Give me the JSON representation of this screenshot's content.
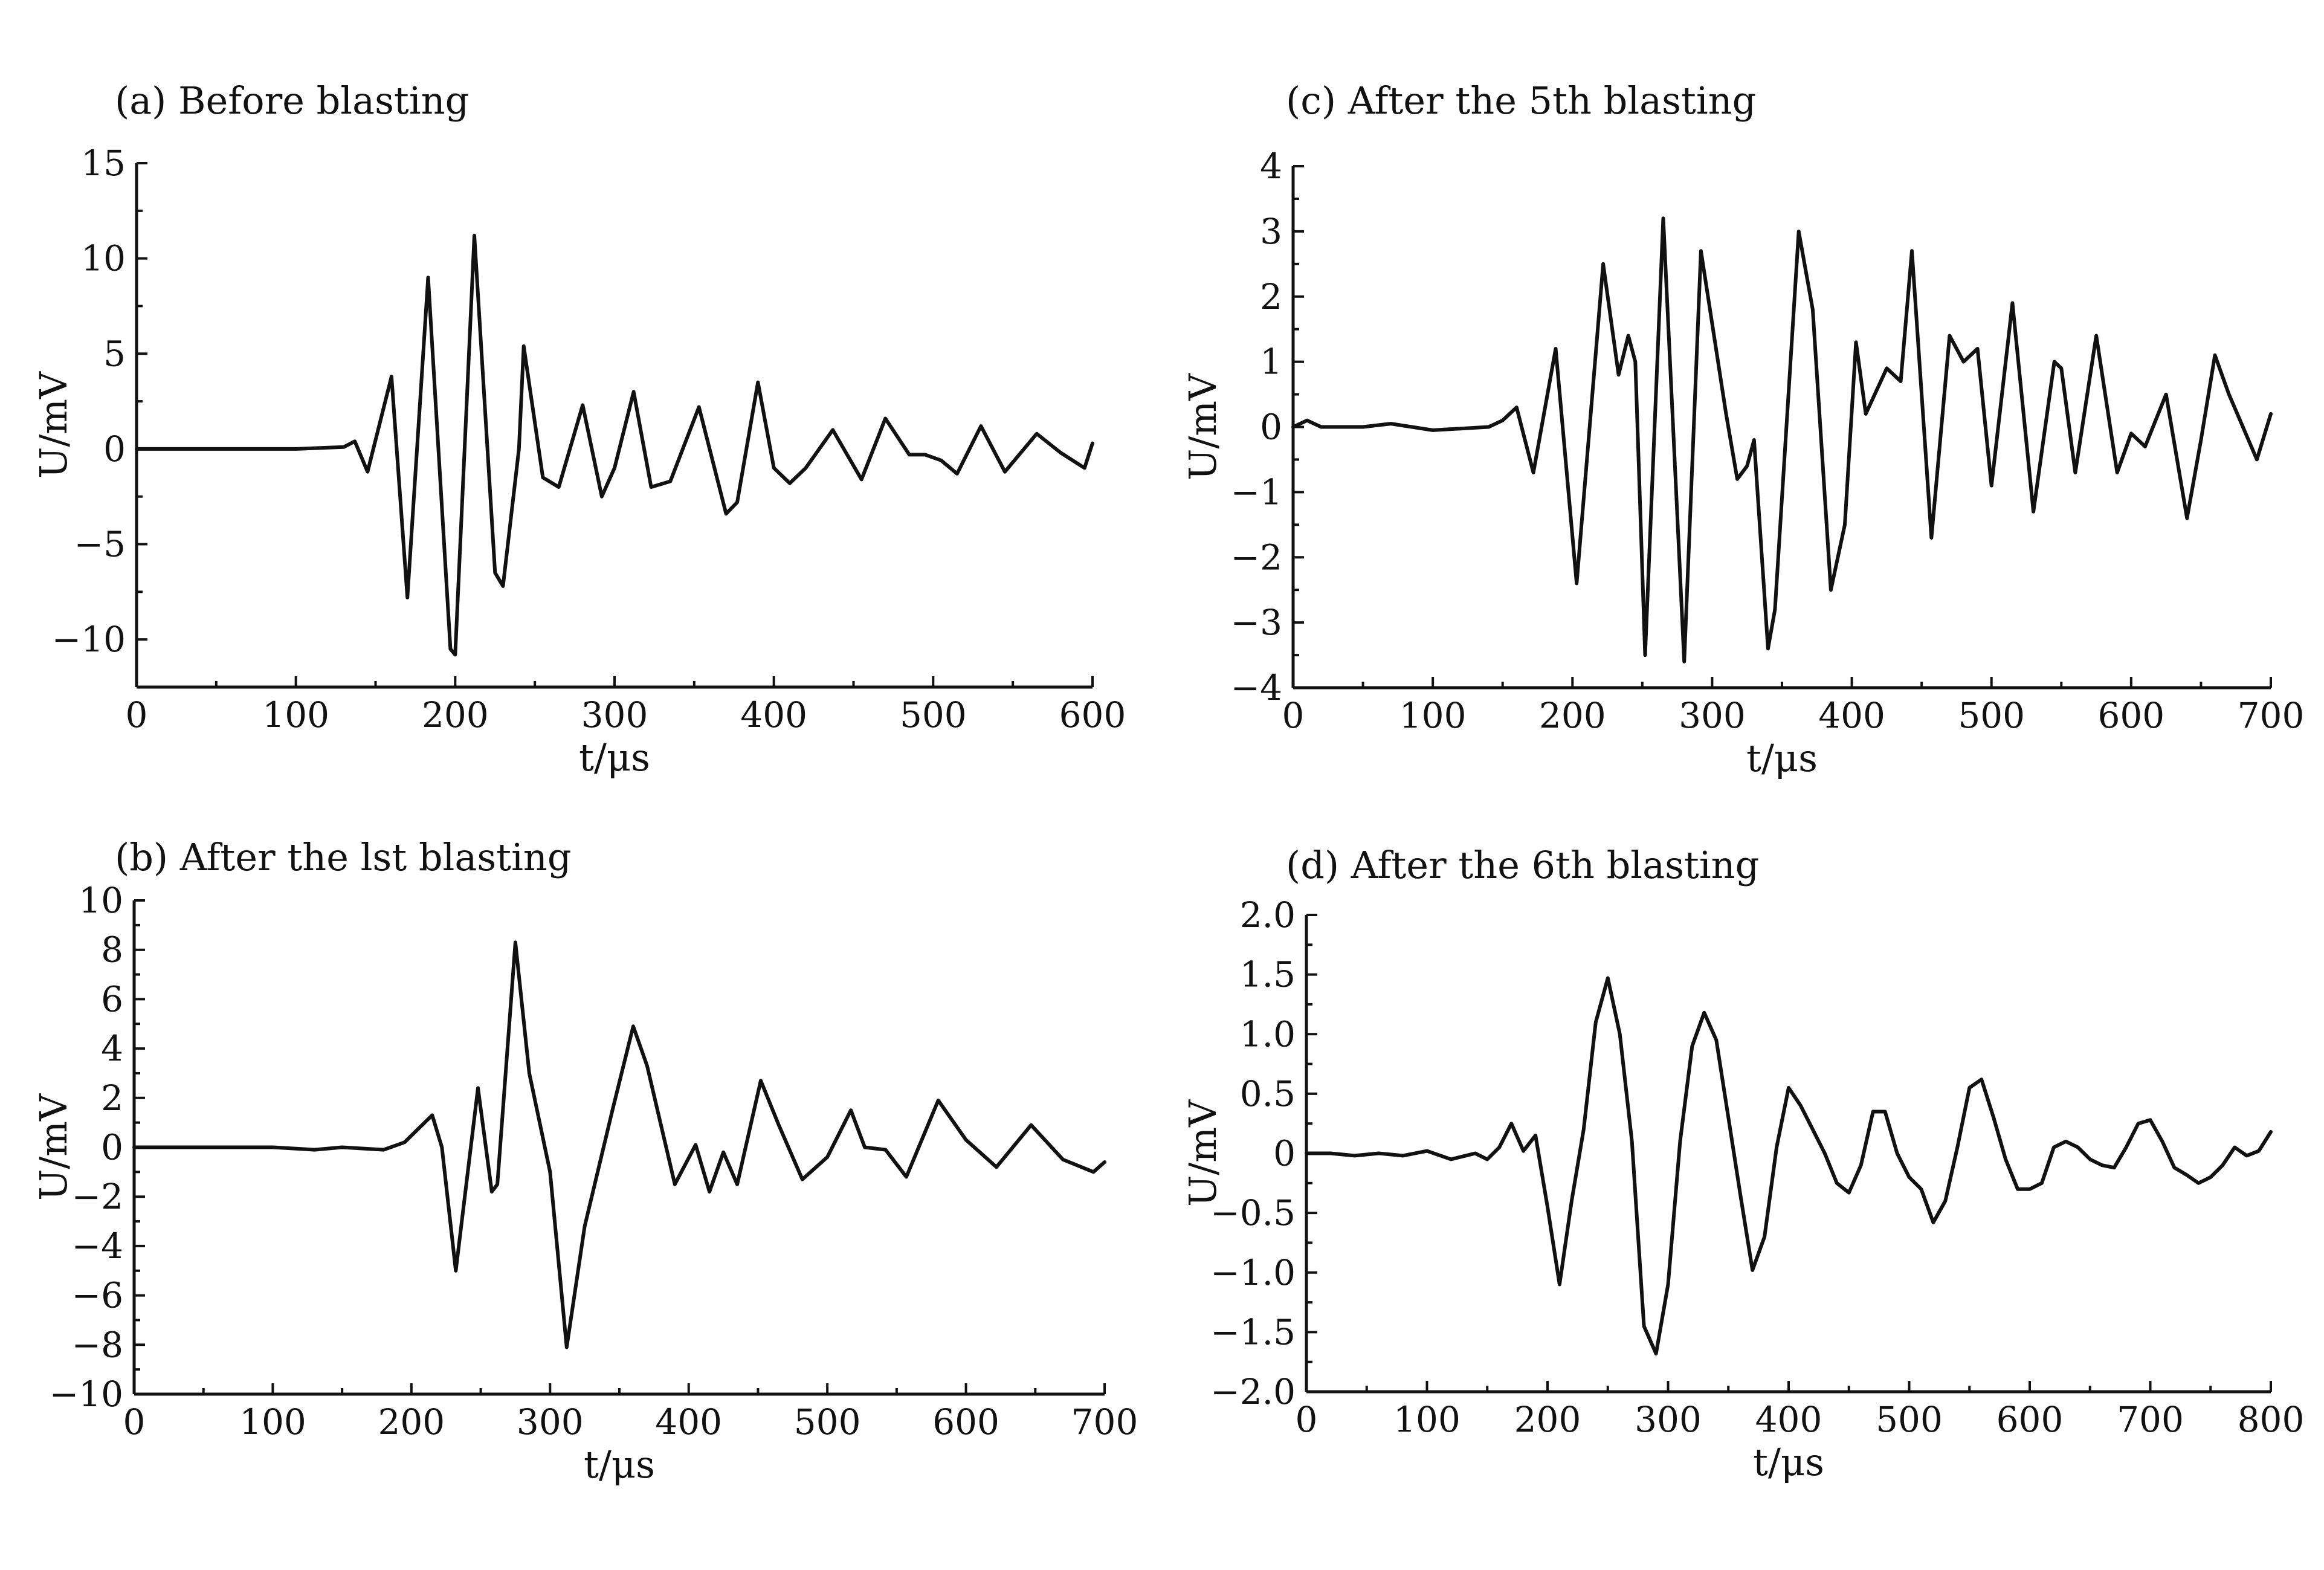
{
  "chart_data": [
    {
      "panel_id": "a",
      "type": "line",
      "title": "(a) Before blasting",
      "xlabel": "t/μs",
      "ylabel": "U/mV",
      "xlim": [
        0,
        600
      ],
      "ylim": [
        -12.5,
        15
      ],
      "xticks": [
        0,
        100,
        200,
        300,
        400,
        500,
        600
      ],
      "yticks": [
        -10,
        -5,
        0,
        5,
        10,
        15
      ],
      "ytick_labels": [
        "−10",
        "−5",
        "0",
        "5",
        "10",
        "15"
      ],
      "grid": false,
      "legend": "none",
      "series": [
        {
          "x": [
            0,
            50,
            100,
            130,
            137,
            145,
            160,
            170,
            183,
            197,
            200,
            212,
            225,
            230,
            240,
            243,
            255,
            265,
            280,
            292,
            300,
            312,
            323,
            335,
            353,
            370,
            377,
            390,
            400,
            410,
            420,
            437,
            455,
            470,
            485,
            495,
            505,
            515,
            530,
            545,
            565,
            580,
            595,
            600
          ],
          "y": [
            0,
            0,
            0,
            0.1,
            0.4,
            -1.2,
            3.8,
            -7.8,
            9,
            -10.5,
            -10.8,
            11.2,
            -6.5,
            -7.2,
            0,
            5.4,
            -1.5,
            -2,
            2.3,
            -2.5,
            -1,
            3,
            -2,
            -1.7,
            2.2,
            -3.4,
            -2.8,
            3.5,
            -1,
            -1.8,
            -1,
            1,
            -1.6,
            1.6,
            -0.3,
            -0.3,
            -0.6,
            -1.3,
            1.2,
            -1.2,
            0.8,
            -0.2,
            -1,
            0.3
          ]
        }
      ]
    },
    {
      "panel_id": "b",
      "type": "line",
      "title": "(b) After the lst blasting",
      "xlabel": "t/μs",
      "ylabel": "U/mV",
      "xlim": [
        0,
        700
      ],
      "ylim": [
        -10,
        10
      ],
      "xticks": [
        0,
        100,
        200,
        300,
        400,
        500,
        600,
        700
      ],
      "yticks": [
        -10,
        -8,
        -6,
        -4,
        -2,
        0,
        2,
        4,
        6,
        8,
        10
      ],
      "ytick_labels": [
        "−10",
        "−8",
        "−6",
        "−4",
        "−2",
        "0",
        "2",
        "4",
        "6",
        "8",
        "10"
      ],
      "grid": false,
      "legend": "none",
      "series": [
        {
          "x": [
            0,
            100,
            130,
            150,
            180,
            195,
            215,
            222,
            232,
            248,
            258,
            262,
            275,
            285,
            300,
            312,
            325,
            345,
            360,
            370,
            390,
            405,
            415,
            425,
            435,
            452,
            465,
            482,
            500,
            517,
            527,
            542,
            557,
            580,
            600,
            622,
            647,
            670,
            692,
            700
          ],
          "y": [
            0,
            0,
            -0.1,
            0,
            -0.1,
            0.2,
            1.3,
            0,
            -5,
            2.4,
            -1.8,
            -1.5,
            8.3,
            3,
            -1,
            -8.1,
            -3.2,
            1.5,
            4.9,
            3.3,
            -1.5,
            0.1,
            -1.8,
            -0.2,
            -1.5,
            2.7,
            0.9,
            -1.3,
            -0.4,
            1.5,
            0,
            -0.1,
            -1.2,
            1.9,
            0.3,
            -0.8,
            0.9,
            -0.5,
            -1,
            -0.6
          ]
        }
      ]
    },
    {
      "panel_id": "c",
      "type": "line",
      "title": "(c) After the 5th blasting",
      "xlabel": "t/μs",
      "ylabel": "U/mV",
      "xlim": [
        0,
        700
      ],
      "ylim": [
        -4,
        4
      ],
      "xticks": [
        0,
        100,
        200,
        300,
        400,
        500,
        600,
        700
      ],
      "yticks": [
        -4,
        -3,
        -2,
        -1,
        0,
        1,
        2,
        3,
        4
      ],
      "ytick_labels": [
        "−4",
        "−3",
        "−2",
        "−1",
        "0",
        "1",
        "2",
        "3",
        "4"
      ],
      "grid": false,
      "legend": "none",
      "series": [
        {
          "x": [
            0,
            10,
            20,
            50,
            70,
            100,
            140,
            150,
            160,
            172,
            188,
            203,
            222,
            233,
            240,
            245,
            252,
            265,
            280,
            292,
            310,
            318,
            325,
            330,
            340,
            345,
            362,
            372,
            385,
            395,
            403,
            410,
            425,
            435,
            443,
            457,
            470,
            480,
            490,
            500,
            515,
            530,
            545,
            550,
            560,
            575,
            590,
            600,
            610,
            625,
            640,
            650,
            660,
            670,
            690,
            700
          ],
          "y": [
            0,
            0.1,
            0,
            0,
            0.05,
            -0.05,
            0,
            0.1,
            0.3,
            -0.7,
            1.2,
            -2.4,
            2.5,
            0.8,
            1.4,
            1,
            -3.5,
            3.2,
            -3.6,
            2.7,
            0.2,
            -0.8,
            -0.6,
            -0.2,
            -3.4,
            -2.8,
            3,
            1.8,
            -2.5,
            -1.5,
            1.3,
            0.2,
            0.9,
            0.7,
            2.7,
            -1.7,
            1.4,
            1,
            1.2,
            -0.9,
            1.9,
            -1.3,
            1,
            0.9,
            -0.7,
            1.4,
            -0.7,
            -0.1,
            -0.3,
            0.5,
            -1.4,
            -0.2,
            1.1,
            0.5,
            -0.5,
            0.2
          ]
        }
      ]
    },
    {
      "panel_id": "d",
      "type": "line",
      "title": "(d) After the 6th blasting",
      "xlabel": "t/μs",
      "ylabel": "U/mV",
      "xlim": [
        0,
        800
      ],
      "ylim": [
        -2,
        2
      ],
      "xticks": [
        0,
        100,
        200,
        300,
        400,
        500,
        600,
        700,
        800
      ],
      "yticks": [
        -2,
        -1.5,
        -1,
        -0.5,
        0,
        0.5,
        1,
        1.5,
        2
      ],
      "ytick_labels": [
        "−2.0",
        "−1.5",
        "−1.0",
        "−0.5",
        "0",
        "0.5",
        "1.0",
        "1.5",
        "2.0"
      ],
      "grid": false,
      "legend": "none",
      "series": [
        {
          "x": [
            0,
            20,
            40,
            60,
            80,
            100,
            120,
            140,
            150,
            160,
            170,
            180,
            190,
            200,
            210,
            220,
            230,
            240,
            250,
            260,
            270,
            280,
            290,
            300,
            310,
            320,
            330,
            340,
            350,
            360,
            370,
            380,
            390,
            400,
            410,
            420,
            430,
            440,
            450,
            460,
            470,
            480,
            490,
            500,
            510,
            520,
            530,
            540,
            550,
            560,
            570,
            580,
            590,
            600,
            610,
            620,
            630,
            640,
            650,
            660,
            670,
            680,
            690,
            700,
            710,
            720,
            730,
            740,
            750,
            760,
            770,
            780,
            790,
            800
          ],
          "y": [
            0,
            0,
            -0.02,
            0,
            -0.02,
            0.02,
            -0.05,
            0,
            -0.05,
            0.05,
            0.25,
            0.02,
            0.15,
            -0.45,
            -1.1,
            -0.4,
            0.2,
            1.1,
            1.47,
            1.0,
            0.1,
            -1.45,
            -1.68,
            -1.1,
            0.1,
            0.9,
            1.18,
            0.95,
            0.3,
            -0.35,
            -0.98,
            -0.7,
            0.05,
            0.55,
            0.4,
            0.2,
            0,
            -0.25,
            -0.33,
            -0.1,
            0.35,
            0.35,
            0,
            -0.2,
            -0.3,
            -0.58,
            -0.4,
            0.05,
            0.55,
            0.62,
            0.3,
            -0.05,
            -0.3,
            -0.3,
            -0.25,
            0.05,
            0.1,
            0.05,
            -0.05,
            -0.1,
            -0.12,
            0.05,
            0.25,
            0.28,
            0.1,
            -0.12,
            -0.18,
            -0.25,
            -0.2,
            -0.1,
            0.05,
            -0.02,
            0.02,
            0.18
          ]
        }
      ]
    }
  ]
}
